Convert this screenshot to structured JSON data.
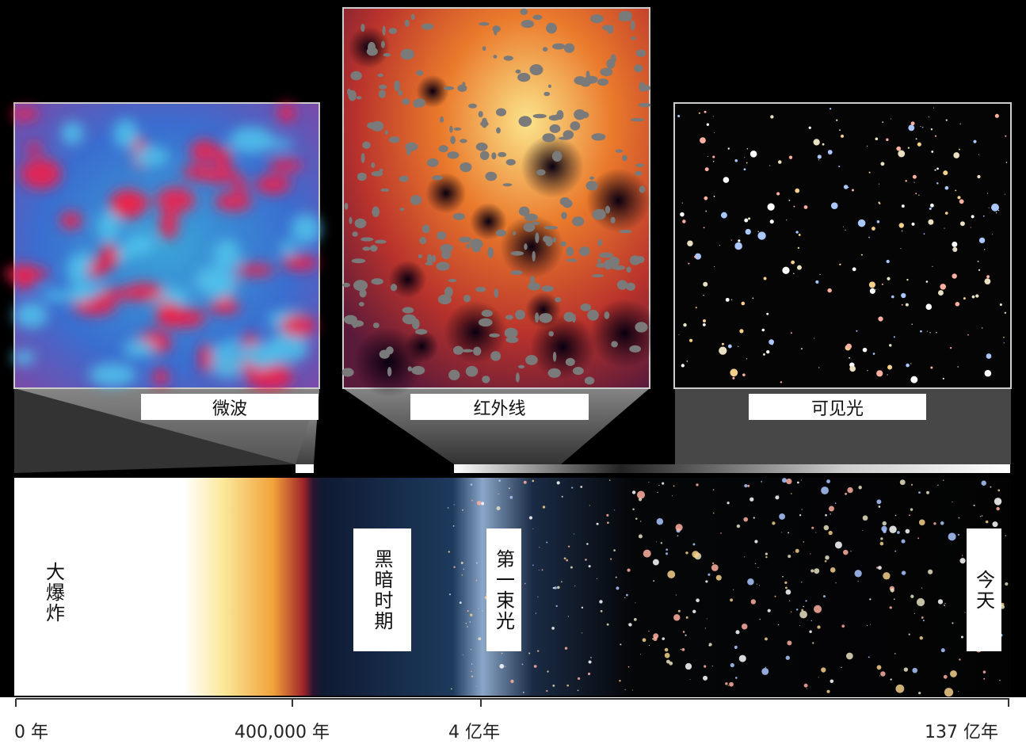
{
  "panels": [
    {
      "label": "微波"
    },
    {
      "label": "红外线"
    },
    {
      "label": "可见光"
    }
  ],
  "timeline": {
    "eras": [
      "大爆炸",
      "黑暗时期",
      "第一束光",
      "今天"
    ],
    "ticks": [
      "0 年",
      "400,000 年",
      "4 亿年",
      "137 亿年"
    ]
  }
}
